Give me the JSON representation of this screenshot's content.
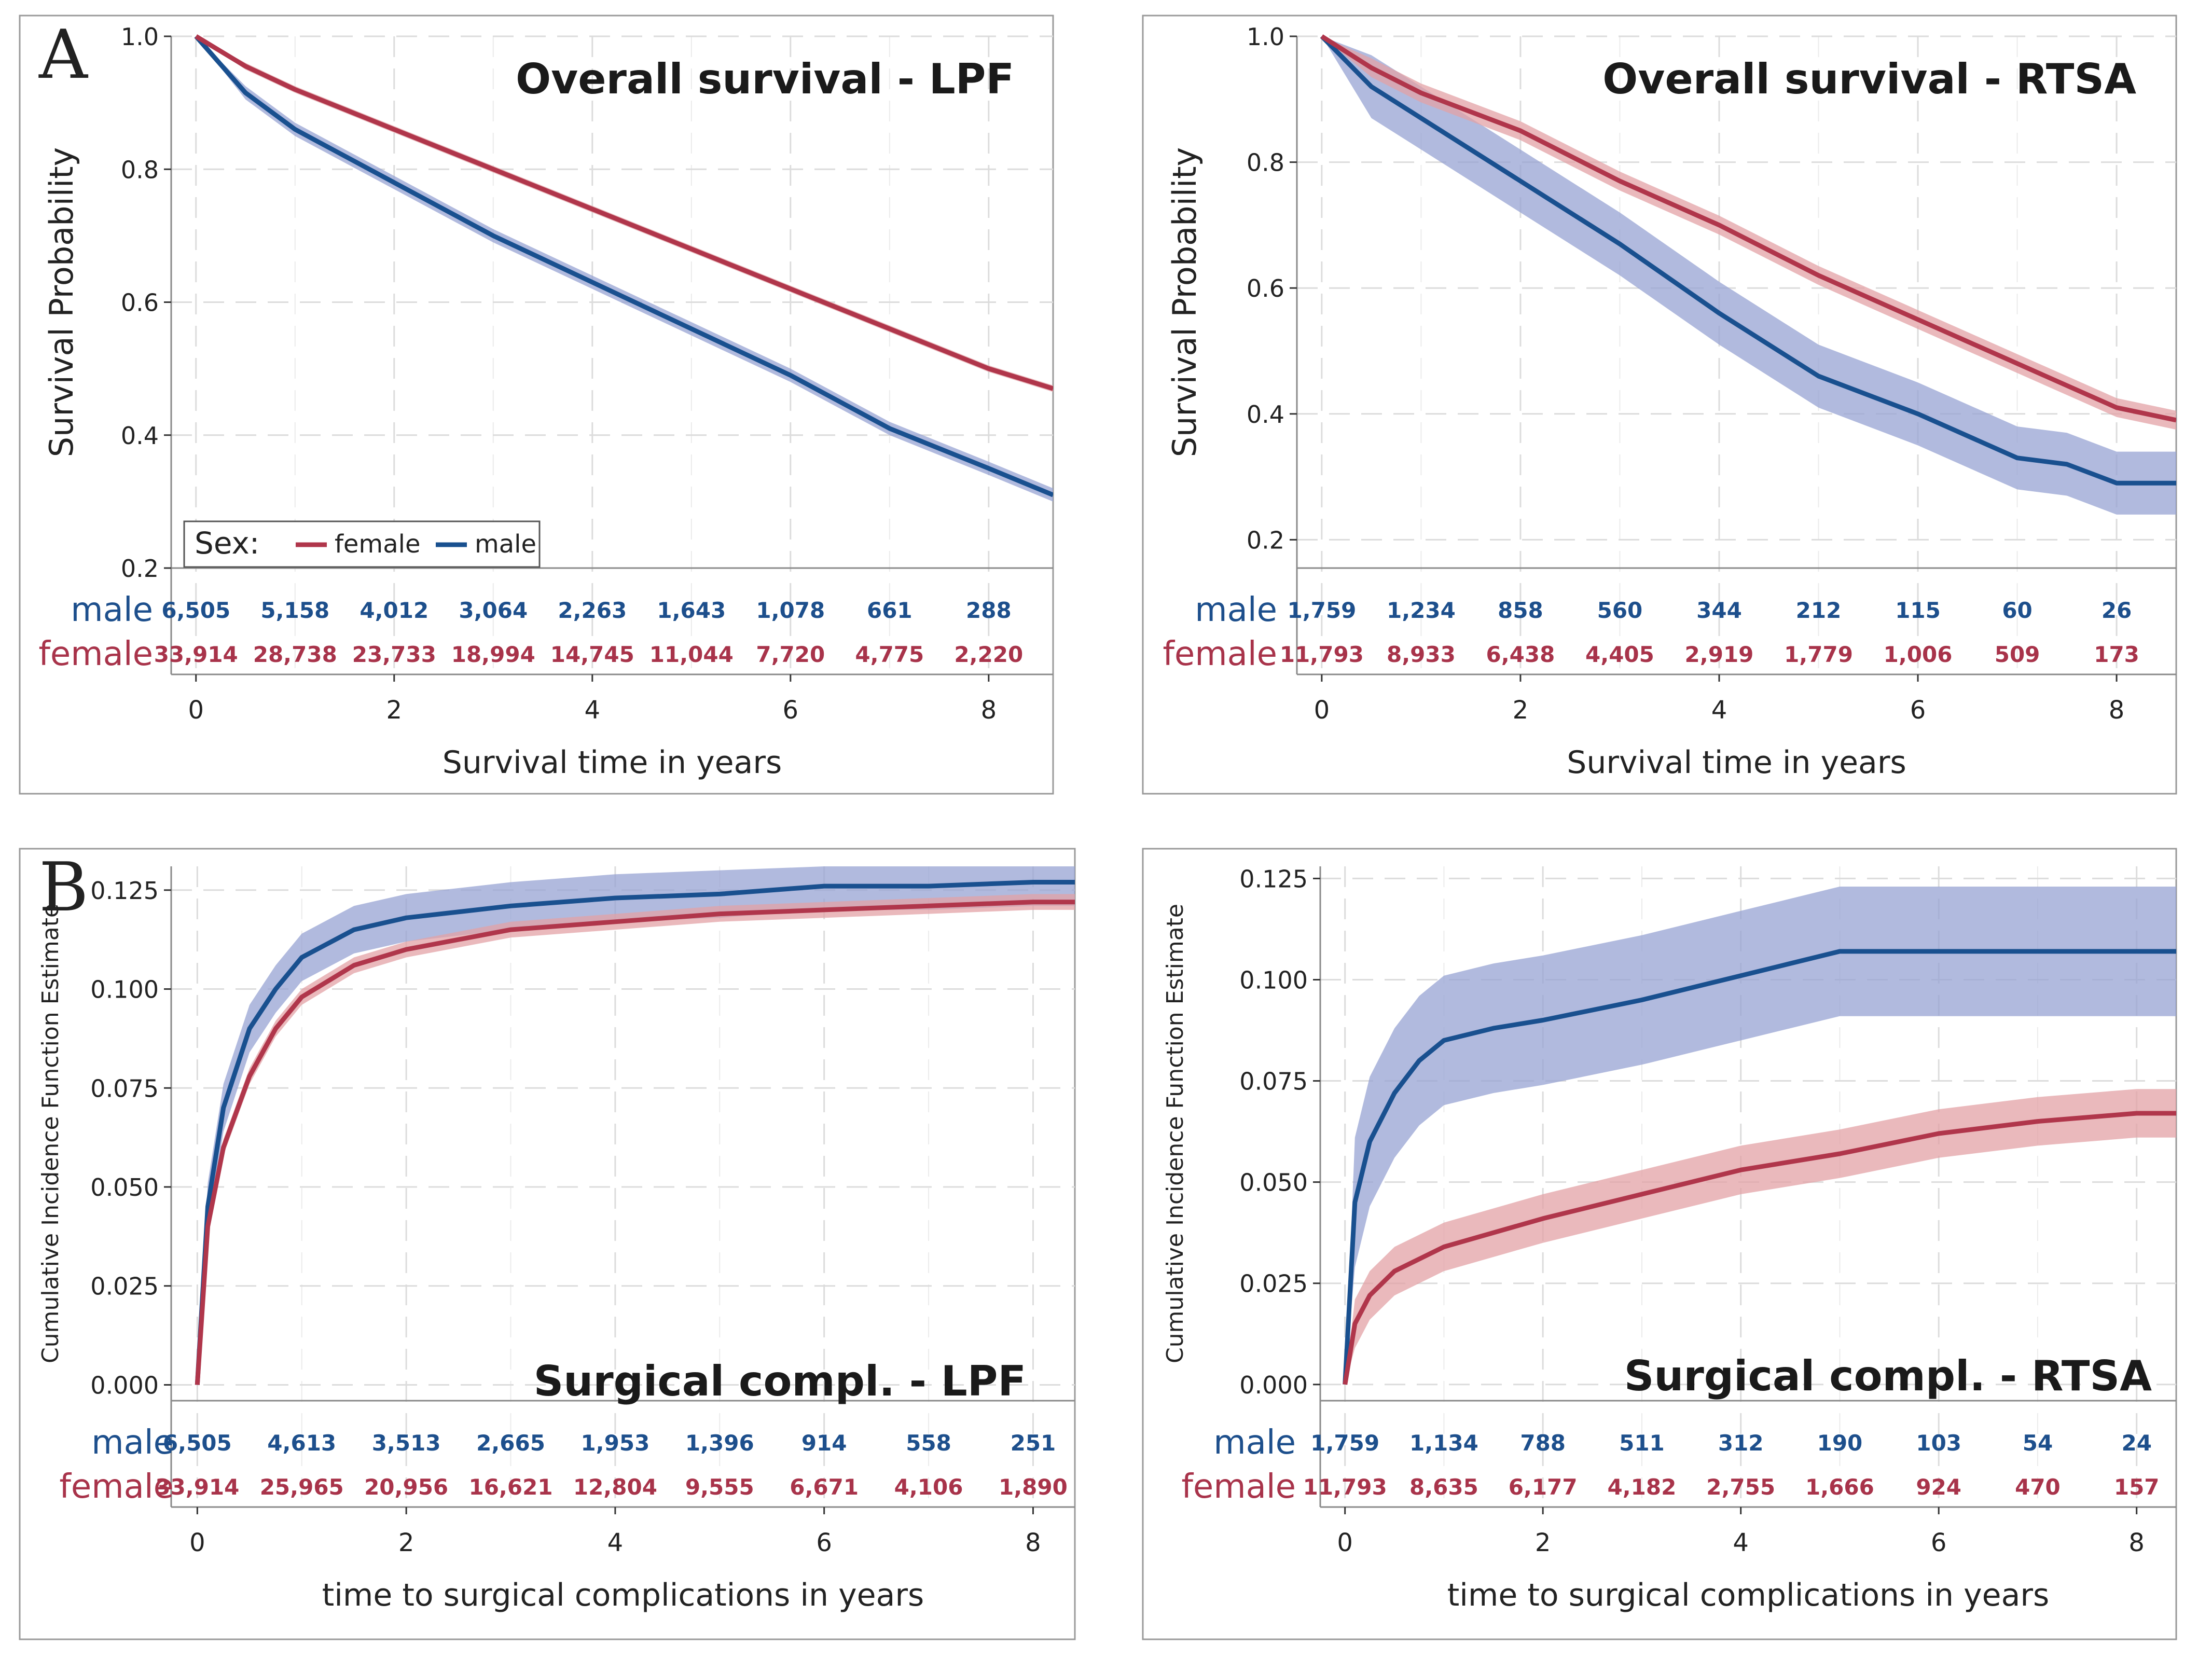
{
  "colors": {
    "female": "#b0364b",
    "male": "#19508f",
    "female_band": "#e3a2a6",
    "male_band": "#97a3d3",
    "risk_male": "#1d4f8c",
    "risk_female": "#a8334a",
    "grid": "#dcdcdc",
    "frame": "#8a8a8a"
  },
  "figure": {
    "labels": [
      "A",
      "B"
    ]
  },
  "legend": {
    "title": "Sex:",
    "items": [
      "female",
      "male"
    ]
  },
  "chart_data": [
    {
      "panel": "A-left",
      "type": "line",
      "title": "Overall survival - LPF",
      "xlabel": "Survival time in years",
      "ylabel": "Survival Probability",
      "xlim": [
        -0.25,
        8.65
      ],
      "ylim": [
        0.2,
        1.0
      ],
      "xticks": [
        0,
        2,
        4,
        6,
        8
      ],
      "yticks": [
        "0.2",
        "0.4",
        "0.6",
        "0.8",
        "1.0"
      ],
      "series": [
        {
          "name": "female",
          "x": [
            0,
            0.5,
            1,
            2,
            3,
            4,
            5,
            6,
            7,
            8,
            8.65
          ],
          "values": [
            1.0,
            0.955,
            0.92,
            0.86,
            0.8,
            0.74,
            0.68,
            0.62,
            0.56,
            0.5,
            0.47
          ],
          "band": 0.005
        },
        {
          "name": "male",
          "x": [
            0,
            0.5,
            1,
            2,
            3,
            4,
            5,
            6,
            7,
            8,
            8.65
          ],
          "values": [
            1.0,
            0.915,
            0.86,
            0.78,
            0.7,
            0.63,
            0.56,
            0.49,
            0.41,
            0.35,
            0.31
          ],
          "band": 0.01
        }
      ],
      "risk_table": {
        "labels": [
          "male",
          "female"
        ],
        "times": [
          0,
          1,
          2,
          3,
          4,
          5,
          6,
          7,
          8
        ],
        "male": [
          "6,505",
          "5,158",
          "4,012",
          "3,064",
          "2,263",
          "1,643",
          "1,078",
          "661",
          "288"
        ],
        "female": [
          "33,914",
          "28,738",
          "23,733",
          "18,994",
          "14,745",
          "11,044",
          "7,720",
          "4,775",
          "2,220"
        ]
      },
      "legend": "bottom-left"
    },
    {
      "panel": "A-right",
      "type": "line",
      "title": "Overall survival - RTSA",
      "xlabel": "Survival time in years",
      "ylabel": "Survival Probability",
      "xlim": [
        -0.25,
        8.6
      ],
      "ylim": [
        0.155,
        1.0
      ],
      "xticks": [
        0,
        2,
        4,
        6,
        8
      ],
      "yticks": [
        "0.2",
        "0.4",
        "0.6",
        "0.8",
        "1.0"
      ],
      "series": [
        {
          "name": "female",
          "x": [
            0,
            0.5,
            1,
            2,
            3,
            4,
            5,
            6,
            7,
            8,
            8.6
          ],
          "values": [
            1.0,
            0.95,
            0.91,
            0.85,
            0.77,
            0.7,
            0.62,
            0.55,
            0.48,
            0.41,
            0.39
          ],
          "band": 0.015
        },
        {
          "name": "male",
          "x": [
            0,
            0.5,
            1,
            2,
            3,
            4,
            5,
            6,
            7,
            7.5,
            8,
            8.6
          ],
          "values": [
            1.0,
            0.92,
            0.87,
            0.77,
            0.67,
            0.56,
            0.46,
            0.4,
            0.33,
            0.32,
            0.29,
            0.29
          ],
          "band": 0.05
        }
      ],
      "risk_table": {
        "labels": [
          "male",
          "female"
        ],
        "times": [
          0,
          1,
          2,
          3,
          4,
          5,
          6,
          7,
          8
        ],
        "male": [
          "1,759",
          "1,234",
          "858",
          "560",
          "344",
          "212",
          "115",
          "60",
          "26"
        ],
        "female": [
          "11,793",
          "8,933",
          "6,438",
          "4,405",
          "2,919",
          "1,779",
          "1,006",
          "509",
          "173"
        ]
      }
    },
    {
      "panel": "B-left",
      "type": "line",
      "title": "Surgical compl. - LPF",
      "xlabel": "time to surgical complications in years",
      "ylabel": "Cumulative Incidence Function Estimate",
      "xlim": [
        -0.25,
        8.4
      ],
      "ylim": [
        -0.004,
        0.131
      ],
      "xticks": [
        0,
        2,
        4,
        6,
        8
      ],
      "yticks": [
        "0.000",
        "0.025",
        "0.050",
        "0.075",
        "0.100",
        "0.125"
      ],
      "series": [
        {
          "name": "female",
          "x": [
            0,
            0.1,
            0.25,
            0.5,
            0.75,
            1,
            1.5,
            2,
            3,
            4,
            5,
            6,
            7,
            8,
            8.4
          ],
          "values": [
            0,
            0.04,
            0.06,
            0.078,
            0.09,
            0.098,
            0.106,
            0.11,
            0.115,
            0.117,
            0.119,
            0.12,
            0.121,
            0.122,
            0.122
          ],
          "band": 0.002
        },
        {
          "name": "male",
          "x": [
            0,
            0.1,
            0.25,
            0.5,
            0.75,
            1,
            1.5,
            2,
            3,
            4,
            5,
            6,
            7,
            8,
            8.4
          ],
          "values": [
            0,
            0.045,
            0.07,
            0.09,
            0.1,
            0.108,
            0.115,
            0.118,
            0.121,
            0.123,
            0.124,
            0.126,
            0.126,
            0.127,
            0.127
          ],
          "band": 0.006
        }
      ],
      "risk_table": {
        "labels": [
          "male",
          "female"
        ],
        "times": [
          0,
          1,
          2,
          3,
          4,
          5,
          6,
          7,
          8
        ],
        "male": [
          "6,505",
          "4,613",
          "3,513",
          "2,665",
          "1,953",
          "1,396",
          "914",
          "558",
          "251"
        ],
        "female": [
          "33,914",
          "25,965",
          "20,956",
          "16,621",
          "12,804",
          "9,555",
          "6,671",
          "4,106",
          "1,890"
        ]
      }
    },
    {
      "panel": "B-right",
      "type": "line",
      "title": "Surgical compl. - RTSA",
      "xlabel": "time to surgical complications in years",
      "ylabel": "Cumulative Incidence Function Estimate",
      "xlim": [
        -0.25,
        8.4
      ],
      "ylim": [
        -0.004,
        0.128
      ],
      "xticks": [
        0,
        2,
        4,
        6,
        8
      ],
      "yticks": [
        "0.000",
        "0.025",
        "0.050",
        "0.075",
        "0.100",
        "0.125"
      ],
      "series": [
        {
          "name": "female",
          "x": [
            0,
            0.1,
            0.25,
            0.5,
            1,
            2,
            3,
            4,
            5,
            6,
            7,
            8,
            8.4
          ],
          "values": [
            0,
            0.015,
            0.022,
            0.028,
            0.034,
            0.041,
            0.047,
            0.053,
            0.057,
            0.062,
            0.065,
            0.067,
            0.067
          ],
          "band": 0.006
        },
        {
          "name": "male",
          "x": [
            0,
            0.1,
            0.25,
            0.5,
            0.75,
            1,
            1.5,
            2,
            3,
            4,
            4.5,
            5,
            6,
            7,
            8,
            8.4
          ],
          "values": [
            0,
            0.045,
            0.06,
            0.072,
            0.08,
            0.085,
            0.088,
            0.09,
            0.095,
            0.101,
            0.104,
            0.107,
            0.107,
            0.107,
            0.107,
            0.107
          ],
          "band": 0.016
        }
      ],
      "risk_table": {
        "labels": [
          "male",
          "female"
        ],
        "times": [
          0,
          1,
          2,
          3,
          4,
          5,
          6,
          7,
          8
        ],
        "male": [
          "1,759",
          "1,134",
          "788",
          "511",
          "312",
          "190",
          "103",
          "54",
          "24"
        ],
        "female": [
          "11,793",
          "8,635",
          "6,177",
          "4,182",
          "2,755",
          "1,666",
          "924",
          "470",
          "157"
        ]
      }
    }
  ]
}
